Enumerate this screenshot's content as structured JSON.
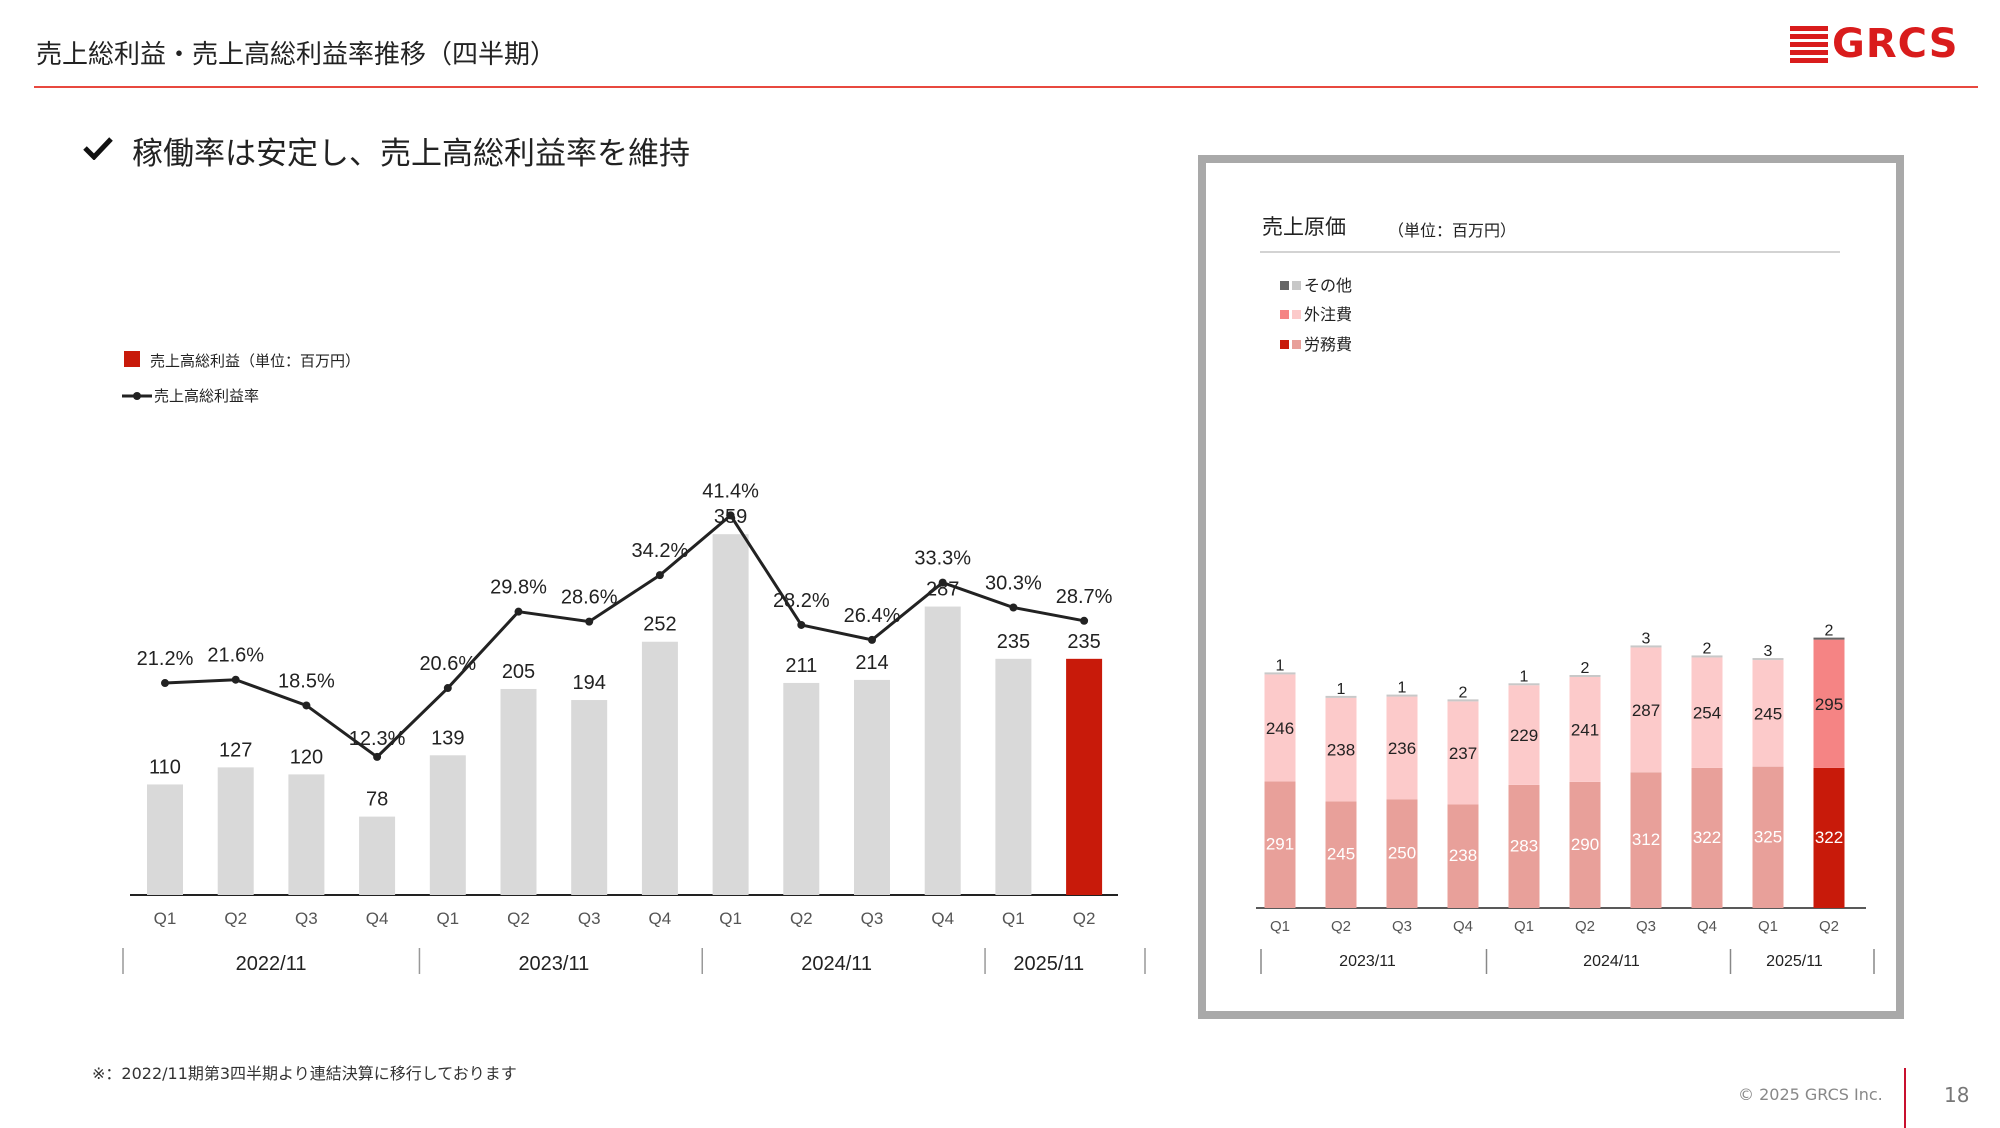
{
  "header": {
    "title": "売上総利益・売上高総利益率推移（四半期）",
    "logo_text": "GRCS",
    "accent_color": "#e8483f",
    "logo_color": "#d91c1c"
  },
  "headline": {
    "icon": "check-icon",
    "text": "稼働率は安定し、売上高総利益率を維持"
  },
  "chart_data": [
    {
      "type": "bar",
      "title": "",
      "categories": [
        "Q1",
        "Q2",
        "Q3",
        "Q4",
        "Q1",
        "Q2",
        "Q3",
        "Q4",
        "Q1",
        "Q2",
        "Q3",
        "Q4",
        "Q1",
        "Q2"
      ],
      "groups": [
        {
          "label": "2022/11",
          "count": 4
        },
        {
          "label": "2023/11",
          "count": 4
        },
        {
          "label": "2024/11",
          "count": 4
        },
        {
          "label": "2025/11",
          "count": 2
        }
      ],
      "series": [
        {
          "name": "売上高総利益（単位：百万円）",
          "type": "bar",
          "values": [
            110,
            127,
            120,
            78,
            139,
            205,
            194,
            252,
            359,
            211,
            214,
            287,
            235,
            235
          ],
          "value_labels": [
            "110",
            "127",
            "120",
            "78",
            "139",
            "205",
            "194",
            "252",
            "359",
            "211",
            "214",
            "287",
            "235",
            "235"
          ],
          "colors": {
            "default": "#d9d9d9",
            "highlight": "#c81a0a"
          },
          "highlight_index": 13
        },
        {
          "name": "売上高総利益率",
          "type": "line",
          "values": [
            21.2,
            21.6,
            18.5,
            12.3,
            20.6,
            29.8,
            28.6,
            34.2,
            41.4,
            28.2,
            26.4,
            33.3,
            30.3,
            28.7
          ],
          "value_labels": [
            "21.2%",
            "21.6%",
            "18.5%",
            "12.3%",
            "20.6%",
            "29.8%",
            "28.6%",
            "34.2%",
            "41.4%",
            "28.2%",
            "26.4%",
            "33.3%",
            "30.3%",
            "28.7%"
          ],
          "unit": "%",
          "color": "#222222"
        }
      ],
      "legend_placement": "top-left",
      "grid": false
    },
    {
      "type": "bar",
      "stacked": true,
      "title": "売上原価",
      "subtitle": "（単位：百万円）",
      "categories": [
        "Q1",
        "Q2",
        "Q3",
        "Q4",
        "Q1",
        "Q2",
        "Q3",
        "Q4",
        "Q1",
        "Q2"
      ],
      "groups": [
        {
          "label": "2023/11",
          "count": 4
        },
        {
          "label": "2024/11",
          "count": 4
        },
        {
          "label": "2025/11",
          "count": 2
        }
      ],
      "series": [
        {
          "name": "労務費",
          "values": [
            291,
            245,
            250,
            238,
            283,
            290,
            312,
            322,
            325,
            322
          ],
          "labels": [
            "291",
            "245",
            "250",
            "238",
            "283",
            "290",
            "312",
            "322",
            "325",
            "322"
          ],
          "color": "#e8a09a",
          "highlight_color": "#c81a0a"
        },
        {
          "name": "外注費",
          "values": [
            246,
            238,
            236,
            237,
            229,
            241,
            287,
            254,
            245,
            295
          ],
          "labels": [
            "246",
            "238",
            "236",
            "237",
            "229",
            "241",
            "287",
            "254",
            "245",
            "295"
          ],
          "color": "#fccaca",
          "highlight_color": "#f58484"
        },
        {
          "name": "その他",
          "values": [
            1,
            1,
            1,
            2,
            1,
            2,
            3,
            2,
            3,
            2
          ],
          "labels": [
            "1",
            "1",
            "1",
            "2",
            "1",
            "2",
            "3",
            "2",
            "3",
            "2"
          ],
          "color": "#c8c8c8",
          "highlight_color": "#666666"
        }
      ],
      "legend_order": [
        "その他",
        "外注費",
        "労務費"
      ],
      "highlight_index": 9,
      "legend_placement": "top-left",
      "grid": false
    }
  ],
  "footnote": "※：2022/11期第3四半期より連結決算に移行しております",
  "footer": {
    "copyright": "© 2025 GRCS Inc.",
    "page_number": "18"
  }
}
